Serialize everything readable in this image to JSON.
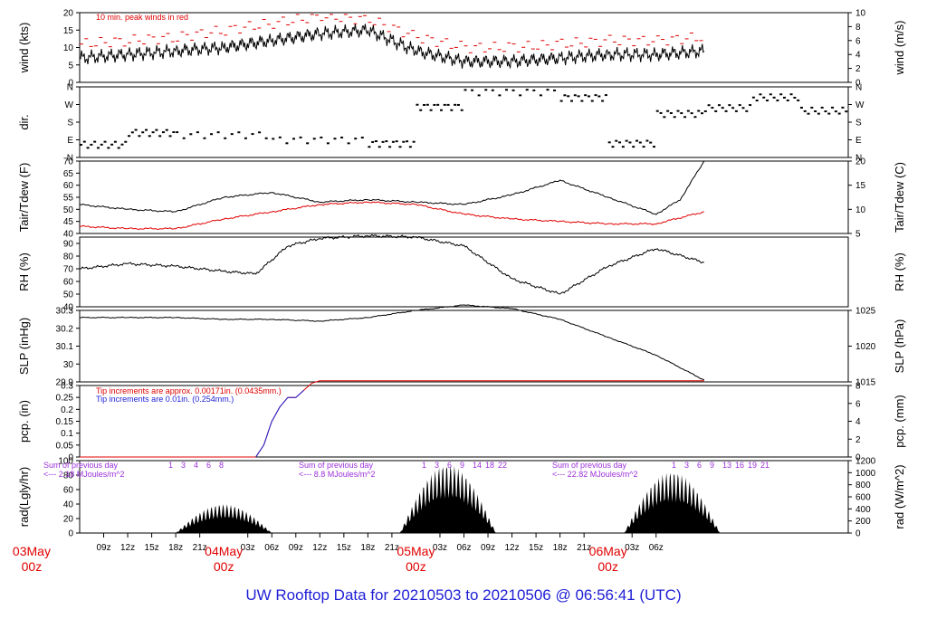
{
  "footer": {
    "title": "UW Rooftop Data for 20210503  to  20210506 @ 06:56:41  (UTC)"
  },
  "colors": {
    "red": "#e00000",
    "blue": "#1f1fd6",
    "purple": "#9b30d9",
    "black": "#000000"
  },
  "chart_data": [
    {
      "type": "line",
      "panel": "wind",
      "ylabel": "wind (kts)",
      "ylabel_right": "wind (m/s)",
      "ylim": [
        0,
        20
      ],
      "yticks": [
        0,
        5,
        10,
        15,
        20
      ],
      "yticks_right": [
        0,
        2,
        4,
        6,
        8,
        10
      ],
      "annotation": "10 min. peak winds in red",
      "x_hours": [
        0,
        6,
        12,
        18,
        24,
        30,
        36,
        42,
        48,
        54,
        60,
        66,
        72,
        78
      ],
      "series": [
        {
          "name": "wind",
          "color": "black",
          "values": [
            7,
            8,
            9,
            10,
            12,
            14,
            15,
            9,
            6,
            6,
            7,
            8,
            8,
            9
          ]
        },
        {
          "name": "peak",
          "color": "red",
          "values": [
            11,
            12,
            13,
            15,
            17,
            19,
            18,
            13,
            10,
            10,
            11,
            12,
            12,
            13
          ]
        }
      ]
    },
    {
      "type": "scatter",
      "panel": "dir",
      "ylabel": "dir.",
      "yticks": [
        "N",
        "E",
        "S",
        "W",
        "N"
      ]
    },
    {
      "type": "line",
      "panel": "temp",
      "ylabel": "Tair/Tdew (F)",
      "ylabel_right": "Tair/Tdew (C)",
      "ylim": [
        40,
        70
      ],
      "yticks": [
        40,
        45,
        50,
        55,
        60,
        65,
        70
      ],
      "yticks_right": [
        5,
        10,
        15,
        20
      ],
      "series": [
        {
          "name": "Tair",
          "color": "black",
          "x": [
            0,
            6,
            12,
            18,
            24,
            30,
            36,
            42,
            48,
            54,
            60,
            66,
            72,
            75,
            78
          ],
          "values": [
            52,
            50,
            49,
            55,
            57,
            53,
            54,
            53,
            52,
            56,
            62,
            55,
            48,
            54,
            70
          ]
        },
        {
          "name": "Tdew",
          "color": "red",
          "x": [
            0,
            6,
            12,
            18,
            24,
            30,
            36,
            42,
            48,
            54,
            60,
            66,
            72,
            78
          ],
          "values": [
            43,
            42,
            42,
            46,
            49,
            52,
            53,
            52,
            48,
            46,
            45,
            44,
            44,
            49
          ]
        }
      ]
    },
    {
      "type": "line",
      "panel": "rh",
      "ylabel": "RH (%)",
      "ylabel_right": "RH (%)",
      "ylim": [
        40,
        95
      ],
      "yticks": [
        40,
        50,
        60,
        70,
        80,
        90
      ],
      "x_hours": [
        0,
        6,
        12,
        18,
        22,
        26,
        30,
        36,
        42,
        48,
        54,
        60,
        66,
        72,
        78
      ],
      "series": [
        {
          "name": "RH",
          "color": "black",
          "values": [
            70,
            74,
            72,
            68,
            66,
            88,
            94,
            96,
            95,
            88,
            62,
            50,
            72,
            86,
            75
          ]
        }
      ]
    },
    {
      "type": "line",
      "panel": "slp",
      "ylabel": "SLP (inHg)",
      "ylabel_right": "SLP (hPa)",
      "ylim": [
        29.9,
        30.3
      ],
      "yticks": [
        29.9,
        30.0,
        30.1,
        30.2,
        30.3
      ],
      "yticks_right": [
        1015,
        1020,
        1025
      ],
      "x_hours": [
        0,
        6,
        12,
        18,
        24,
        30,
        36,
        42,
        48,
        54,
        60,
        66,
        72,
        78
      ],
      "series": [
        {
          "name": "SLP",
          "color": "black",
          "values": [
            30.26,
            30.26,
            30.26,
            30.25,
            30.25,
            30.24,
            30.26,
            30.3,
            30.33,
            30.31,
            30.25,
            30.15,
            30.05,
            29.91
          ]
        }
      ]
    },
    {
      "type": "line",
      "panel": "pcp",
      "ylabel": "pcp. (in)",
      "ylabel_right": "pcp. (mm)",
      "ylim": [
        0,
        0.3
      ],
      "yticks": [
        0.0,
        0.05,
        0.1,
        0.15,
        0.2,
        0.25,
        0.3
      ],
      "yticks_right": [
        0,
        2,
        4,
        6,
        8
      ],
      "annotations": [
        {
          "text": "Tip increments are approx. 0.00171in. (0.0435mm.)",
          "color": "red"
        },
        {
          "text": "Tip increments are 0.01in. (0.254mm.)",
          "color": "blue"
        }
      ],
      "x_hours": [
        0,
        6,
        12,
        18,
        22,
        23,
        24,
        25,
        26,
        27,
        28,
        29,
        30,
        36,
        42,
        48,
        54,
        60,
        66,
        72,
        78
      ],
      "series": [
        {
          "name": "pcp",
          "color": "red",
          "values": [
            0,
            0,
            0,
            0,
            0,
            0.05,
            0.15,
            0.21,
            0.25,
            0.25,
            0.28,
            0.31,
            0.32,
            0.32,
            0.32,
            0.32,
            0.32,
            0.32,
            0.32,
            0.32,
            0.32
          ]
        }
      ]
    },
    {
      "type": "area",
      "panel": "rad",
      "ylabel": "rad(Lgly/hr)",
      "ylabel_right": "rad (W/m^2)",
      "ylim": [
        0,
        100
      ],
      "yticks": [
        0,
        20,
        40,
        60,
        80,
        100
      ],
      "yticks_right": [
        0,
        200,
        400,
        600,
        800,
        1000,
        1200
      ],
      "x_hours": [
        0,
        6,
        12,
        18,
        24,
        30,
        36,
        42,
        48,
        54,
        60,
        66,
        72,
        78
      ],
      "series": [
        {
          "name": "rad",
          "color": "black",
          "values": [
            0,
            0,
            20,
            40,
            10,
            0,
            0,
            30,
            80,
            60,
            0,
            30,
            60,
            0
          ]
        }
      ],
      "day_sums": [
        {
          "line1": "Sum of previous day",
          "line2": "<--- 2.18 MJoules/m^2"
        },
        {
          "line1": "Sum of previous day",
          "line2": "<--- 8.8 MJoules/m^2"
        },
        {
          "line1": "Sum of previous day",
          "line2": "<--- 22.82 MJoules/m^2"
        }
      ],
      "hour_marks": [
        [
          "1",
          "3",
          "4",
          "6",
          "8"
        ],
        [
          "1",
          "3",
          "6",
          "9",
          "14",
          "18",
          "22"
        ],
        [
          "1",
          "3",
          "6",
          "9",
          "13",
          "16",
          "19",
          "21"
        ]
      ]
    }
  ],
  "x_axis": {
    "ticks": [
      "09z",
      "12z",
      "15z",
      "18z",
      "21z",
      "03z",
      "06z",
      "09z",
      "12z",
      "15z",
      "18z",
      "21z",
      "03z",
      "06z",
      "09z",
      "12z",
      "15z",
      "18z",
      "21z",
      "03z",
      "06z"
    ],
    "dates": [
      {
        "label": "03May",
        "sub": "00z"
      },
      {
        "label": "04May",
        "sub": "00z"
      },
      {
        "label": "05May",
        "sub": "00z"
      },
      {
        "label": "06May",
        "sub": "00z"
      }
    ]
  }
}
